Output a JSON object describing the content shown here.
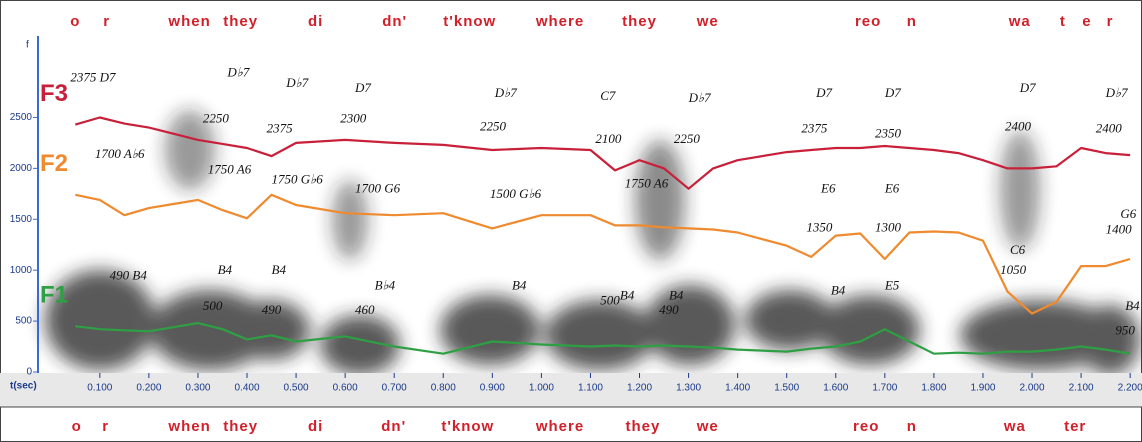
{
  "chart_data": {
    "type": "line",
    "x_label": "t(sec)",
    "y_label": "f",
    "xlim": [
      -0.026,
      2.216
    ],
    "ylim": [
      0,
      3300
    ],
    "xticks": [
      {
        "value": 0.1,
        "label": "0.100"
      },
      {
        "value": 0.2,
        "label": "0.200"
      },
      {
        "value": 0.3,
        "label": "0.300"
      },
      {
        "value": 0.4,
        "label": "0.400"
      },
      {
        "value": 0.5,
        "label": "0.500"
      },
      {
        "value": 0.6,
        "label": "0.600"
      },
      {
        "value": 0.7,
        "label": "0.700"
      },
      {
        "value": 0.8,
        "label": "0.800"
      },
      {
        "value": 0.9,
        "label": "0.900"
      },
      {
        "value": 1.0,
        "label": "1.000"
      },
      {
        "value": 1.1,
        "label": "1.100"
      },
      {
        "value": 1.2,
        "label": "1.200"
      },
      {
        "value": 1.3,
        "label": "1.300"
      },
      {
        "value": 1.4,
        "label": "1.400"
      },
      {
        "value": 1.5,
        "label": "1.500"
      },
      {
        "value": 1.6,
        "label": "1.600"
      },
      {
        "value": 1.7,
        "label": "1.700"
      },
      {
        "value": 1.8,
        "label": "1.800"
      },
      {
        "value": 1.9,
        "label": "1.900"
      },
      {
        "value": 2.0,
        "label": "2.000"
      },
      {
        "value": 2.1,
        "label": "2.100"
      },
      {
        "value": 2.2,
        "label": "2.200"
      }
    ],
    "yticks": [
      0,
      500,
      1000,
      1500,
      2000,
      2500
    ],
    "x": [
      0.05,
      0.1,
      0.15,
      0.2,
      0.25,
      0.3,
      0.35,
      0.4,
      0.45,
      0.5,
      0.6,
      0.7,
      0.8,
      0.9,
      1.0,
      1.1,
      1.15,
      1.2,
      1.25,
      1.3,
      1.35,
      1.4,
      1.5,
      1.55,
      1.6,
      1.65,
      1.7,
      1.75,
      1.8,
      1.85,
      1.9,
      1.95,
      2.0,
      2.05,
      2.1,
      2.15,
      2.2
    ],
    "series": [
      {
        "name": "F3",
        "color": "#c8203a",
        "values": [
          2430,
          2500,
          2440,
          2400,
          2340,
          2280,
          2240,
          2200,
          2120,
          2250,
          2280,
          2250,
          2230,
          2180,
          2200,
          2180,
          1980,
          2080,
          2000,
          1800,
          2000,
          2080,
          2160,
          2180,
          2200,
          2200,
          2220,
          2200,
          2180,
          2150,
          2080,
          2000,
          2000,
          2020,
          2200,
          2150,
          2130
        ]
      },
      {
        "name": "F2",
        "color": "#ef8a2e",
        "values": [
          1740,
          1690,
          1540,
          1610,
          1650,
          1690,
          1590,
          1510,
          1740,
          1640,
          1560,
          1540,
          1560,
          1410,
          1540,
          1540,
          1440,
          1440,
          1420,
          1410,
          1400,
          1370,
          1240,
          1130,
          1340,
          1360,
          1110,
          1370,
          1380,
          1370,
          1290,
          790,
          575,
          690,
          1040,
          1040,
          1110
        ]
      },
      {
        "name": "F1",
        "color": "#2ea043",
        "values": [
          450,
          420,
          410,
          400,
          440,
          480,
          420,
          320,
          360,
          300,
          350,
          250,
          180,
          300,
          270,
          250,
          260,
          250,
          260,
          250,
          240,
          220,
          200,
          230,
          250,
          300,
          420,
          300,
          180,
          190,
          180,
          200,
          200,
          220,
          250,
          220,
          180
        ]
      }
    ],
    "lyrics_top": [
      {
        "text": "o",
        "x": 0.05
      },
      {
        "text": "r",
        "x": 0.114
      },
      {
        "text": "when",
        "x": 0.283
      },
      {
        "text": "they",
        "x": 0.387
      },
      {
        "text": "di",
        "x": 0.54
      },
      {
        "text": "dn'",
        "x": 0.701
      },
      {
        "text": "t'know",
        "x": 0.854
      },
      {
        "text": "where",
        "x": 1.038
      },
      {
        "text": "they",
        "x": 1.2
      },
      {
        "text": "we",
        "x": 1.339
      },
      {
        "text": "reo",
        "x": 1.666
      },
      {
        "text": "n",
        "x": 1.755
      },
      {
        "text": "wa",
        "x": 1.975
      },
      {
        "text": "t",
        "x": 2.063
      },
      {
        "text": "e",
        "x": 2.112
      },
      {
        "text": "r",
        "x": 2.159
      }
    ],
    "lyrics_bottom": [
      {
        "text": "o",
        "x": 0.053
      },
      {
        "text": "r",
        "x": 0.112
      },
      {
        "text": "when",
        "x": 0.283
      },
      {
        "text": "they",
        "x": 0.387
      },
      {
        "text": "di",
        "x": 0.54
      },
      {
        "text": "dn'",
        "x": 0.699
      },
      {
        "text": "t'know",
        "x": 0.85
      },
      {
        "text": "where",
        "x": 1.038
      },
      {
        "text": "they",
        "x": 1.207
      },
      {
        "text": "we",
        "x": 1.339
      },
      {
        "text": "reo",
        "x": 1.662
      },
      {
        "text": "n",
        "x": 1.755
      },
      {
        "text": "wa",
        "x": 1.965
      },
      {
        "text": "ter",
        "x": 2.088
      }
    ],
    "annotations": [
      {
        "text": "2375 D7",
        "x": 0.04,
        "y": 2880
      },
      {
        "text": "D♭7",
        "x": 0.36,
        "y": 2930
      },
      {
        "text": "D♭7",
        "x": 0.48,
        "y": 2830
      },
      {
        "text": "D7",
        "x": 0.62,
        "y": 2780
      },
      {
        "text": "2250",
        "x": 0.31,
        "y": 2480
      },
      {
        "text": "2375",
        "x": 0.44,
        "y": 2380
      },
      {
        "text": "2300",
        "x": 0.59,
        "y": 2480
      },
      {
        "text": "D♭7",
        "x": 0.905,
        "y": 2730
      },
      {
        "text": "2250",
        "x": 0.875,
        "y": 2400
      },
      {
        "text": "C7",
        "x": 1.12,
        "y": 2700
      },
      {
        "text": "2100",
        "x": 1.11,
        "y": 2280
      },
      {
        "text": "D♭7",
        "x": 1.3,
        "y": 2680
      },
      {
        "text": "2250",
        "x": 1.27,
        "y": 2280
      },
      {
        "text": "D7",
        "x": 1.56,
        "y": 2730
      },
      {
        "text": "2375",
        "x": 1.53,
        "y": 2380
      },
      {
        "text": "D7",
        "x": 1.7,
        "y": 2730
      },
      {
        "text": "2350",
        "x": 1.68,
        "y": 2330
      },
      {
        "text": "D7",
        "x": 1.975,
        "y": 2780
      },
      {
        "text": "2400",
        "x": 1.945,
        "y": 2400
      },
      {
        "text": "D♭7",
        "x": 2.15,
        "y": 2730
      },
      {
        "text": "2400",
        "x": 2.13,
        "y": 2380
      },
      {
        "text": "1700 A♭6",
        "x": 0.09,
        "y": 2130
      },
      {
        "text": "1750 A6",
        "x": 0.32,
        "y": 1980
      },
      {
        "text": "1750 G♭6",
        "x": 0.45,
        "y": 1880
      },
      {
        "text": "1700 G6",
        "x": 0.62,
        "y": 1790
      },
      {
        "text": "1500 G♭6",
        "x": 0.895,
        "y": 1740
      },
      {
        "text": "1750 A6",
        "x": 1.17,
        "y": 1840
      },
      {
        "text": "E6",
        "x": 1.57,
        "y": 1790
      },
      {
        "text": "1350",
        "x": 1.54,
        "y": 1410
      },
      {
        "text": "E6",
        "x": 1.7,
        "y": 1790
      },
      {
        "text": "1300",
        "x": 1.68,
        "y": 1410
      },
      {
        "text": "C6",
        "x": 1.955,
        "y": 1190
      },
      {
        "text": "1050",
        "x": 1.935,
        "y": 990
      },
      {
        "text": "G6",
        "x": 2.18,
        "y": 1540
      },
      {
        "text": "1400",
        "x": 2.15,
        "y": 1390
      },
      {
        "text": "490 B4",
        "x": 0.12,
        "y": 940
      },
      {
        "text": "B4",
        "x": 0.34,
        "y": 990
      },
      {
        "text": "500",
        "x": 0.31,
        "y": 640
      },
      {
        "text": "B4",
        "x": 0.45,
        "y": 990
      },
      {
        "text": "490",
        "x": 0.43,
        "y": 600
      },
      {
        "text": "B♭4",
        "x": 0.66,
        "y": 840
      },
      {
        "text": "460",
        "x": 0.62,
        "y": 600
      },
      {
        "text": "B4",
        "x": 0.94,
        "y": 840
      },
      {
        "text": "B4",
        "x": 1.16,
        "y": 740
      },
      {
        "text": "500",
        "x": 1.12,
        "y": 690
      },
      {
        "text": "B4",
        "x": 1.26,
        "y": 740
      },
      {
        "text": "490",
        "x": 1.24,
        "y": 600
      },
      {
        "text": "B4",
        "x": 1.59,
        "y": 790
      },
      {
        "text": "E5",
        "x": 1.7,
        "y": 840
      },
      {
        "text": "B4",
        "x": 2.19,
        "y": 640
      },
      {
        "text": "950",
        "x": 2.17,
        "y": 400
      }
    ]
  }
}
